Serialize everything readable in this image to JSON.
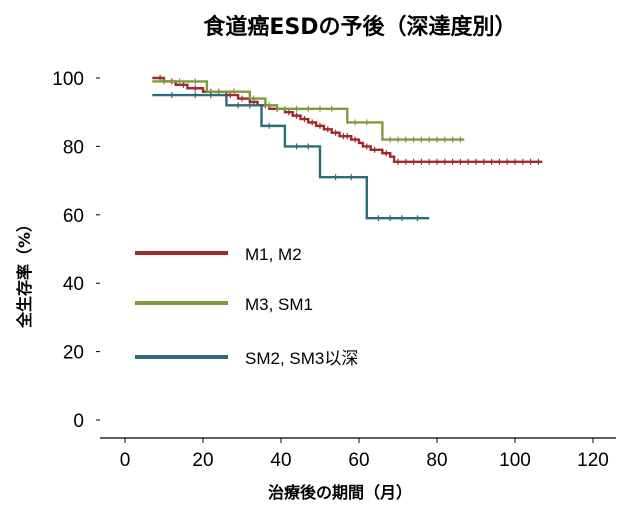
{
  "chart_data": {
    "type": "line",
    "title": "食道癌ESDの予後（深達度別）",
    "xlabel": "治療後の期間（月）",
    "ylabel": "全生存率（%）",
    "xlim": [
      0,
      120
    ],
    "ylim": [
      0,
      100
    ],
    "x_ticks": [
      "0",
      "20",
      "40",
      "60",
      "80",
      "100",
      "120"
    ],
    "y_ticks": [
      "0",
      "20",
      "40",
      "60",
      "80",
      "100"
    ],
    "grid": false,
    "legend_position": "center-left",
    "series": [
      {
        "name": "M1, M2",
        "color": "#9e2a2b",
        "steps": [
          [
            7,
            100
          ],
          [
            10,
            99
          ],
          [
            13,
            98
          ],
          [
            16,
            97
          ],
          [
            20,
            96
          ],
          [
            26,
            95
          ],
          [
            29,
            94
          ],
          [
            32,
            93
          ],
          [
            34,
            92
          ],
          [
            37,
            91
          ],
          [
            41,
            90
          ],
          [
            43,
            89
          ],
          [
            45,
            88
          ],
          [
            47,
            87
          ],
          [
            49,
            86
          ],
          [
            51,
            85
          ],
          [
            53,
            84
          ],
          [
            55,
            83
          ],
          [
            58,
            82
          ],
          [
            60,
            81
          ],
          [
            61,
            80
          ],
          [
            63,
            79
          ],
          [
            66,
            78
          ],
          [
            68,
            77
          ],
          [
            69,
            75.5
          ],
          [
            107,
            75.5
          ]
        ],
        "censors": [
          9,
          12,
          15,
          18,
          22,
          24,
          27,
          30,
          33,
          36,
          39,
          42,
          44,
          46,
          48,
          50,
          52,
          54,
          56,
          57,
          59,
          62,
          64,
          67,
          70,
          72,
          74,
          76,
          78,
          80,
          82,
          84,
          86,
          88,
          90,
          92,
          94,
          96,
          98,
          100,
          102,
          104,
          106
        ]
      },
      {
        "name": "M3, SM1",
        "color": "#7e9a3c",
        "steps": [
          [
            7,
            99
          ],
          [
            20,
            99
          ],
          [
            21,
            96
          ],
          [
            31,
            96
          ],
          [
            32,
            94
          ],
          [
            35,
            94
          ],
          [
            36,
            92
          ],
          [
            38,
            92
          ],
          [
            39,
            91
          ],
          [
            56,
            91
          ],
          [
            57,
            87
          ],
          [
            65,
            87
          ],
          [
            66,
            82
          ],
          [
            87,
            82
          ]
        ],
        "censors": [
          10,
          14,
          18,
          24,
          28,
          33,
          37,
          41,
          44,
          47,
          50,
          53,
          59,
          62,
          68,
          70,
          72,
          74,
          76,
          78,
          80,
          82,
          84,
          86
        ]
      },
      {
        "name": "SM2, SM3以深",
        "color": "#2e6b77",
        "steps": [
          [
            7,
            95
          ],
          [
            25,
            95
          ],
          [
            26,
            92
          ],
          [
            34,
            92
          ],
          [
            35,
            86
          ],
          [
            40,
            86
          ],
          [
            41,
            80
          ],
          [
            49,
            80
          ],
          [
            50,
            71
          ],
          [
            61,
            71
          ],
          [
            62,
            59
          ],
          [
            78,
            59
          ]
        ],
        "censors": [
          12,
          18,
          22,
          29,
          32,
          37,
          44,
          47,
          54,
          58,
          65,
          68,
          71,
          75
        ]
      }
    ]
  }
}
